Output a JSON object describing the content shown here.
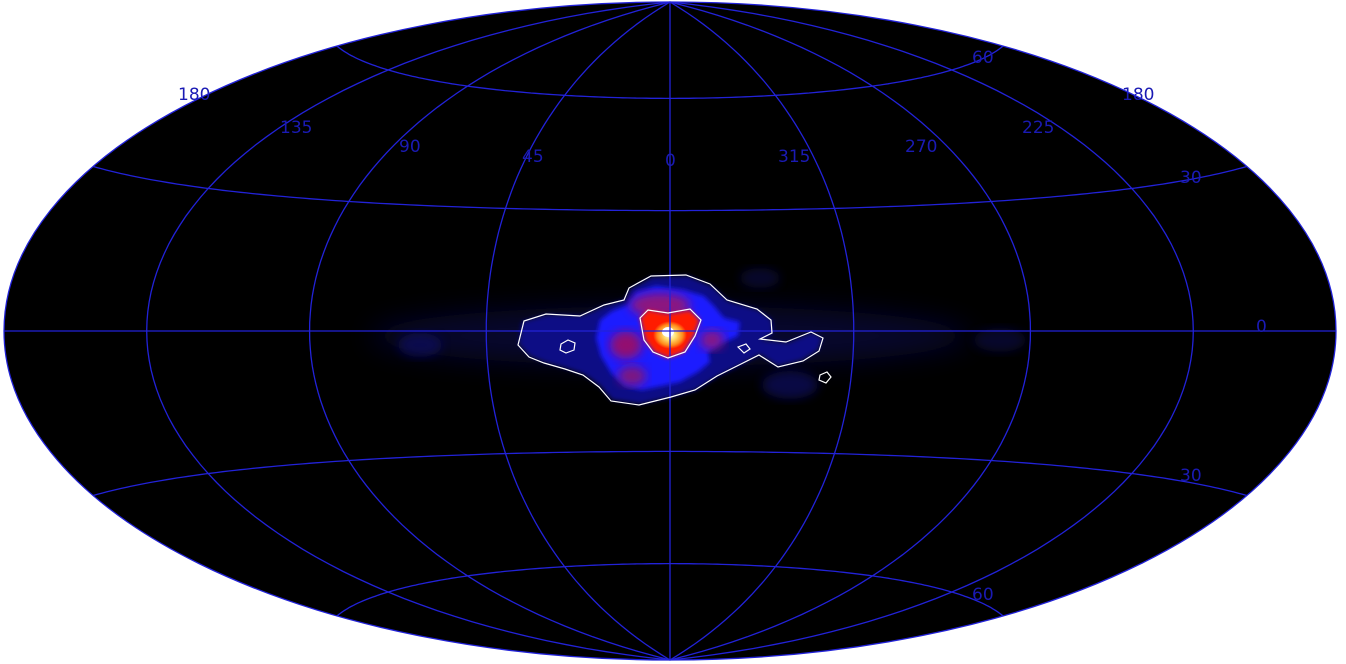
{
  "map": {
    "projection": "Hammer-Aitoff (galactic coordinates)",
    "center_longitude": 0,
    "longitude_direction": "increasing to the left",
    "background_color": "#000000",
    "graticule_color": "#2222d8",
    "label_color": "#1a1ab4",
    "contour_color": "#ffffff",
    "colormap": [
      "#000000",
      "#1a1aff",
      "#b01060",
      "#ff1a00",
      "#ffe070",
      "#ffffff"
    ],
    "longitude_labels": [
      "180",
      "135",
      "90",
      "45",
      "0",
      "315",
      "270",
      "225",
      "180"
    ],
    "latitude_labels": {
      "north_60": "60",
      "north_30": "30",
      "equator": "0",
      "south_30": "30",
      "south_60": "60"
    },
    "emission_peak": {
      "l": 0,
      "b": 0
    }
  }
}
